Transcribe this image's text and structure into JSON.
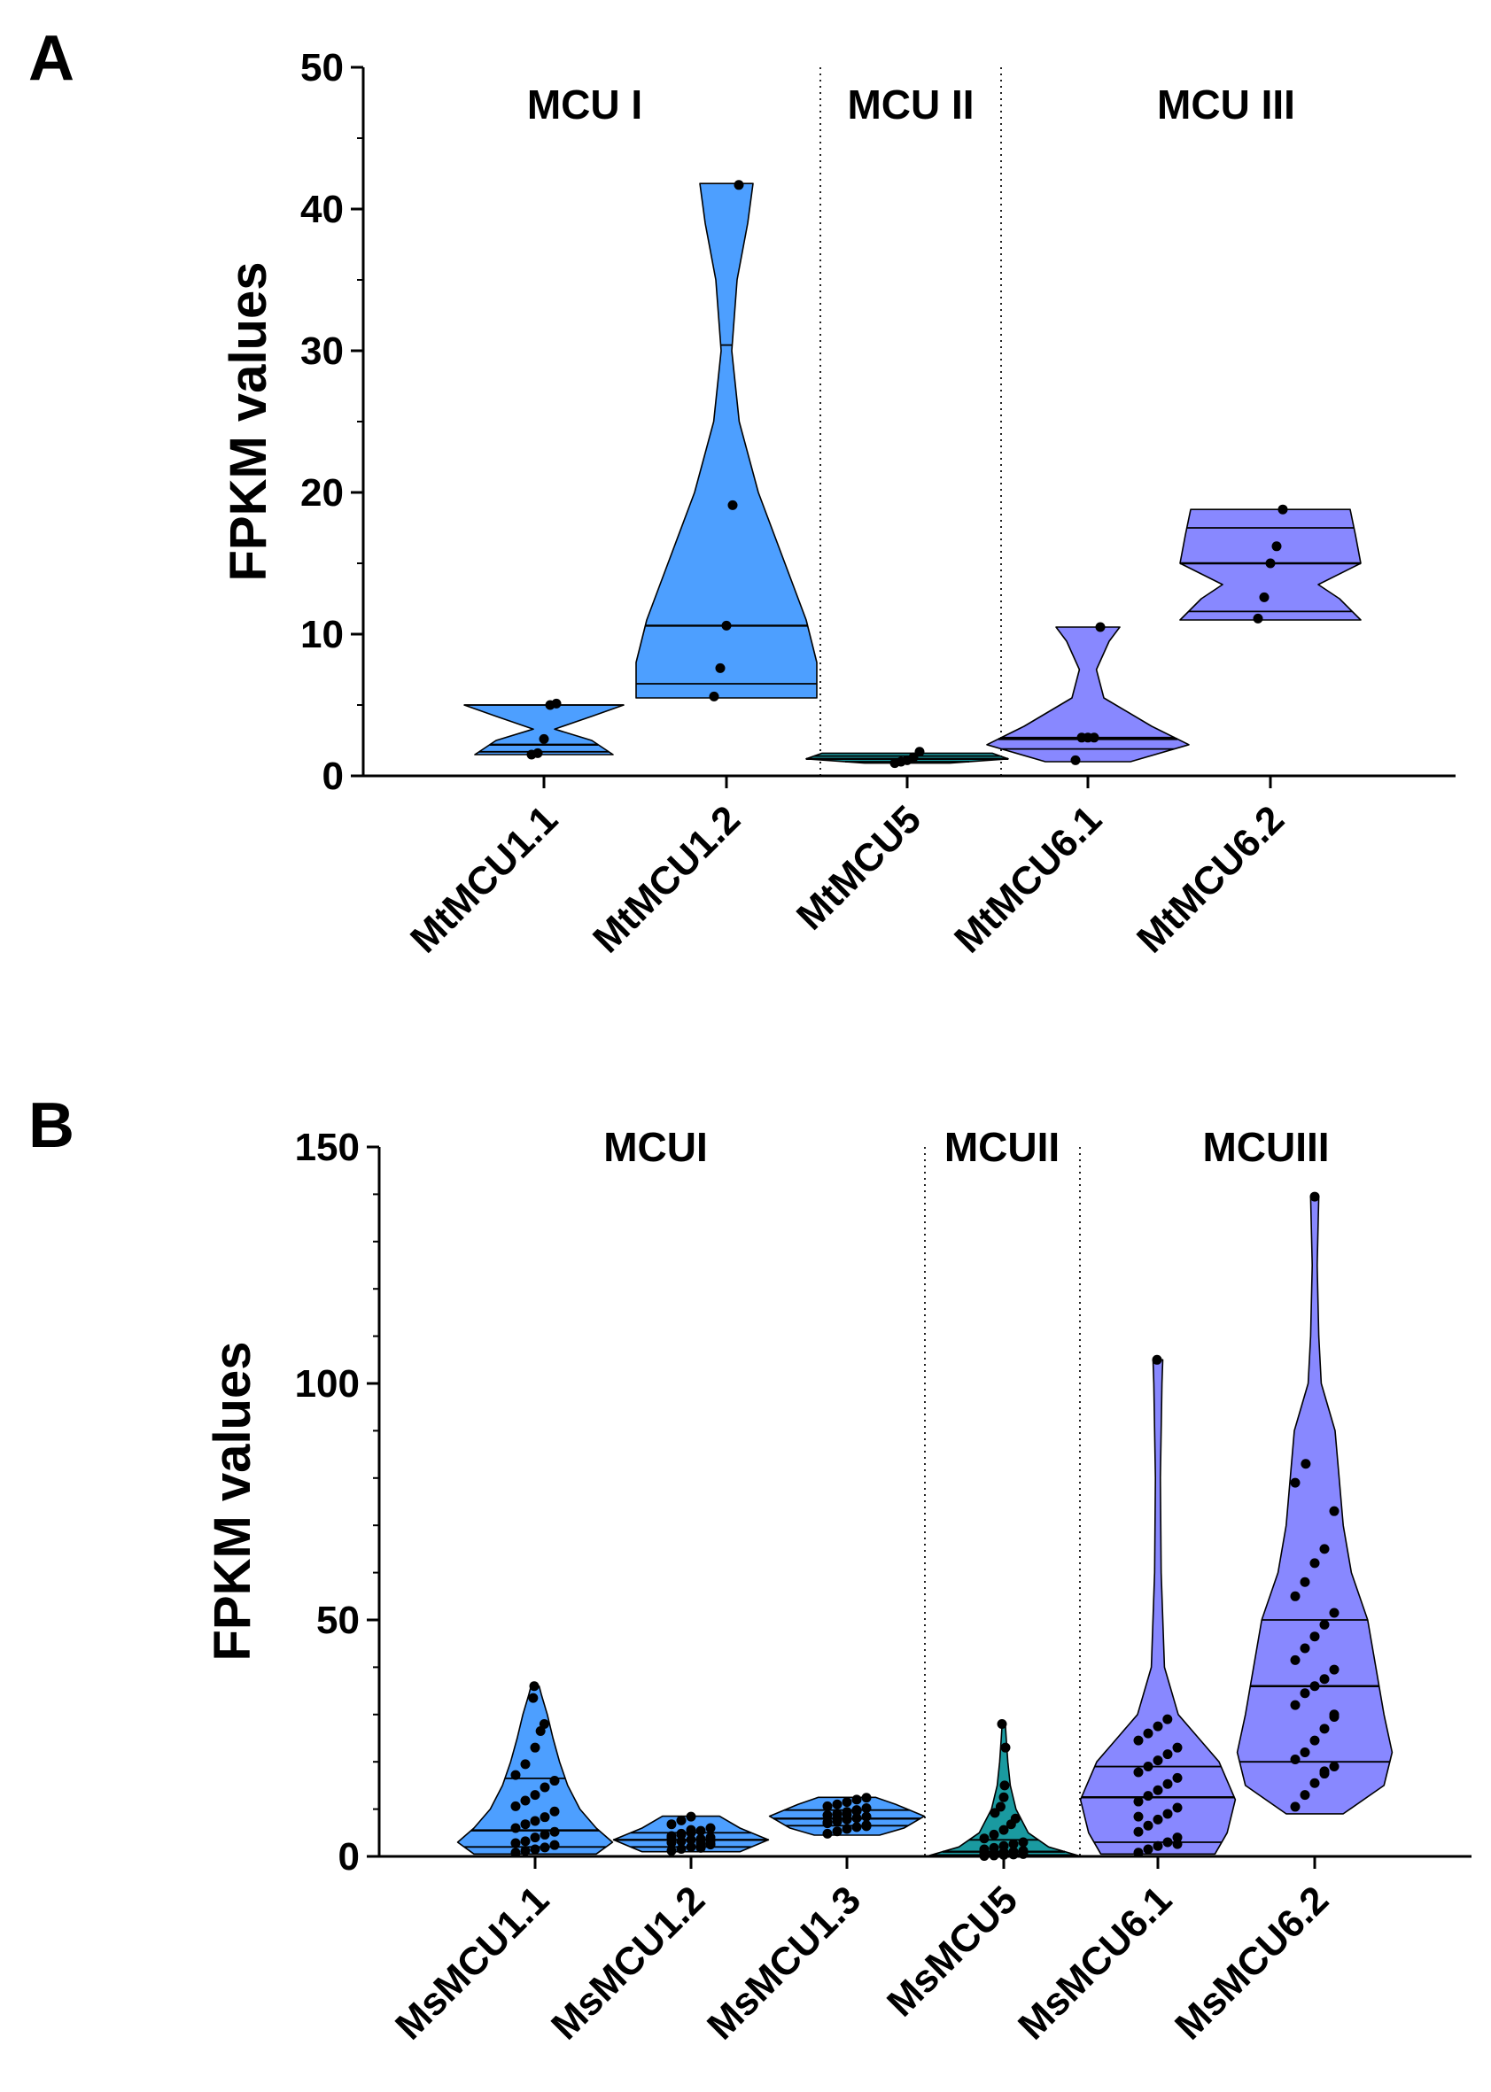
{
  "panels": {
    "A": {
      "letter": "A"
    },
    "B": {
      "letter": "B"
    }
  },
  "colors": {
    "group1": "#4d9fff",
    "group2": "#1a9aa0",
    "group3": "#8888ff",
    "axis": "#000000",
    "point": "#000000"
  },
  "chart_data": [
    {
      "type": "violin",
      "panel": "A",
      "ylabel": "FPKM values",
      "ylim": [
        0,
        50
      ],
      "yticks": [
        0,
        10,
        20,
        30,
        40,
        50
      ],
      "ytick_labels": [
        "0",
        "10",
        "20",
        "30",
        "40",
        "50"
      ],
      "group_labels": [
        "MCU I",
        "MCU II",
        "MCU III"
      ],
      "categories": [
        "MtMCU1.1",
        "MtMCU1.2",
        "MtMCU5",
        "MtMCU6.1",
        "MtMCU6.2"
      ],
      "series": [
        {
          "name": "MtMCU1.1",
          "group": 1,
          "min": 1.5,
          "max": 5.0,
          "quartiles": [
            1.7,
            2.2,
            5.0
          ],
          "profile": [
            [
              1.5,
              0.65
            ],
            [
              2.5,
              0.45
            ],
            [
              3.3,
              0.1
            ],
            [
              4.2,
              0.45
            ],
            [
              5.0,
              0.75
            ]
          ],
          "points": [
            1.5,
            1.6,
            2.6,
            5.0,
            5.1
          ]
        },
        {
          "name": "MtMCU1.2",
          "group": 1,
          "min": 5.5,
          "max": 41.8,
          "quartiles": [
            6.5,
            10.6,
            30.4
          ],
          "profile": [
            [
              5.5,
              0.85
            ],
            [
              8,
              0.85
            ],
            [
              11,
              0.75
            ],
            [
              15,
              0.55
            ],
            [
              20,
              0.3
            ],
            [
              25,
              0.12
            ],
            [
              30,
              0.05
            ],
            [
              35,
              0.1
            ],
            [
              39,
              0.2
            ],
            [
              41.8,
              0.25
            ]
          ],
          "points": [
            5.6,
            7.6,
            10.6,
            19.1,
            41.7
          ]
        },
        {
          "name": "MtMCU5",
          "group": 2,
          "min": 0.9,
          "max": 1.6,
          "quartiles": [
            1.0,
            1.2,
            1.4
          ],
          "profile": [
            [
              0.9,
              0.4
            ],
            [
              1.2,
              0.95
            ],
            [
              1.6,
              0.8
            ]
          ],
          "points": [
            0.9,
            1.0,
            1.1,
            1.3,
            1.7
          ]
        },
        {
          "name": "MtMCU6.1",
          "group": 3,
          "min": 1.0,
          "max": 10.5,
          "quartiles": [
            1.9,
            2.6,
            2.7
          ],
          "profile": [
            [
              1.0,
              0.4
            ],
            [
              2.2,
              0.95
            ],
            [
              3.5,
              0.6
            ],
            [
              5.5,
              0.15
            ],
            [
              7.5,
              0.08
            ],
            [
              9.5,
              0.2
            ],
            [
              10.5,
              0.3
            ]
          ],
          "points": [
            1.1,
            2.7,
            2.7,
            2.7,
            10.5
          ]
        },
        {
          "name": "MtMCU6.2",
          "group": 3,
          "min": 11.0,
          "max": 18.8,
          "quartiles": [
            11.6,
            15.0,
            17.5
          ],
          "profile": [
            [
              11.0,
              0.85
            ],
            [
              12.5,
              0.65
            ],
            [
              13.5,
              0.45
            ],
            [
              15,
              0.85
            ],
            [
              17,
              0.8
            ],
            [
              18.8,
              0.75
            ]
          ],
          "points": [
            11.1,
            12.6,
            15.0,
            16.2,
            18.8
          ]
        }
      ]
    },
    {
      "type": "violin",
      "panel": "B",
      "ylabel": "FPKM values",
      "ylim": [
        0,
        150
      ],
      "yticks": [
        0,
        50,
        100,
        150
      ],
      "ytick_labels": [
        "0",
        "50",
        "100",
        "150"
      ],
      "group_labels": [
        "MCUI",
        "MCUII",
        "MCUIII"
      ],
      "categories": [
        "MsMCU1.1",
        "MsMCU1.2",
        "MsMCU1.3",
        "MsMCU5",
        "MsMCU6.1",
        "MsMCU6.2"
      ],
      "series": [
        {
          "name": "MsMCU1.1",
          "group": 1,
          "min": 0.5,
          "max": 36.0,
          "quartiles": [
            2.0,
            5.5,
            16.5
          ],
          "profile": [
            [
              0.5,
              0.75
            ],
            [
              3,
              0.95
            ],
            [
              6,
              0.75
            ],
            [
              10,
              0.55
            ],
            [
              15,
              0.4
            ],
            [
              20,
              0.3
            ],
            [
              25,
              0.22
            ],
            [
              30,
              0.15
            ],
            [
              34,
              0.08
            ],
            [
              36,
              0.05
            ]
          ],
          "points": [
            0.8,
            1.2,
            1.5,
            1.9,
            2.4,
            2.8,
            3.2,
            4.0,
            4.6,
            5.2,
            6.0,
            6.8,
            7.5,
            8.3,
            9.5,
            10.6,
            11.8,
            13.0,
            14.6,
            16.0,
            17.2,
            19.5,
            23.0,
            26.5,
            28.0,
            33.5,
            36.0
          ]
        },
        {
          "name": "MsMCU1.2",
          "group": 1,
          "min": 1.0,
          "max": 8.5,
          "quartiles": [
            2.0,
            3.5,
            5.0
          ],
          "profile": [
            [
              1.0,
              0.6
            ],
            [
              3.5,
              0.95
            ],
            [
              6,
              0.6
            ],
            [
              8.5,
              0.35
            ]
          ],
          "points": [
            1.2,
            1.6,
            2.0,
            2.3,
            2.6,
            2.9,
            3.2,
            3.5,
            3.7,
            4.0,
            4.3,
            4.6,
            5.0,
            5.4,
            6.0,
            6.8,
            7.6,
            8.4,
            2.8,
            3.3,
            3.9,
            4.8,
            5.6,
            1.8,
            2.5
          ]
        },
        {
          "name": "MsMCU1.3",
          "group": 1,
          "min": 4.5,
          "max": 12.5,
          "quartiles": [
            6.5,
            8.0,
            9.8
          ],
          "profile": [
            [
              4.5,
              0.4
            ],
            [
              6,
              0.7
            ],
            [
              8.5,
              0.95
            ],
            [
              11,
              0.6
            ],
            [
              12.5,
              0.35
            ]
          ],
          "points": [
            4.8,
            5.3,
            5.8,
            6.2,
            6.6,
            7.0,
            7.4,
            7.8,
            8.1,
            8.4,
            8.7,
            9.0,
            9.4,
            9.8,
            10.2,
            10.6,
            11.0,
            11.5,
            12.0,
            12.4,
            7.2,
            8.0,
            8.8,
            9.6,
            6.4
          ]
        },
        {
          "name": "MsMCU5",
          "group": 2,
          "min": 0.0,
          "max": 28.0,
          "quartiles": [
            0.3,
            1.0,
            3.5
          ],
          "profile": [
            [
              0,
              0.95
            ],
            [
              2,
              0.55
            ],
            [
              5,
              0.3
            ],
            [
              10,
              0.15
            ],
            [
              15,
              0.08
            ],
            [
              20,
              0.05
            ],
            [
              25,
              0.03
            ],
            [
              28,
              0.02
            ]
          ],
          "points": [
            0.1,
            0.2,
            0.3,
            0.4,
            0.5,
            0.6,
            0.7,
            0.8,
            1.0,
            1.2,
            1.5,
            1.8,
            2.2,
            2.6,
            3.0,
            3.8,
            4.6,
            5.6,
            6.8,
            8.0,
            9.2,
            10.5,
            12.5,
            15.0,
            23.0,
            28.0,
            0.35,
            0.9
          ]
        },
        {
          "name": "MsMCU6.1",
          "group": 3,
          "min": 0.5,
          "max": 105.0,
          "quartiles": [
            3.0,
            12.5,
            19.0
          ],
          "profile": [
            [
              0.5,
              0.7
            ],
            [
              5,
              0.85
            ],
            [
              12,
              0.95
            ],
            [
              20,
              0.75
            ],
            [
              25,
              0.5
            ],
            [
              30,
              0.25
            ],
            [
              40,
              0.08
            ],
            [
              60,
              0.04
            ],
            [
              80,
              0.03
            ],
            [
              100,
              0.05
            ],
            [
              105,
              0.06
            ]
          ],
          "points": [
            0.8,
            1.5,
            2.2,
            3.0,
            4.0,
            5.2,
            6.5,
            7.8,
            9.0,
            10.3,
            11.6,
            12.8,
            14.0,
            15.3,
            16.6,
            17.8,
            19.0,
            20.3,
            21.6,
            23.0,
            24.5,
            26.0,
            27.5,
            29.0,
            2.6,
            8.4,
            105.0
          ]
        },
        {
          "name": "MsMCU6.2",
          "group": 3,
          "min": 9.0,
          "max": 139.5,
          "quartiles": [
            20.0,
            36.0,
            50.0
          ],
          "profile": [
            [
              9,
              0.35
            ],
            [
              15,
              0.85
            ],
            [
              22,
              0.95
            ],
            [
              30,
              0.85
            ],
            [
              40,
              0.75
            ],
            [
              50,
              0.65
            ],
            [
              60,
              0.45
            ],
            [
              70,
              0.35
            ],
            [
              80,
              0.3
            ],
            [
              90,
              0.25
            ],
            [
              100,
              0.08
            ],
            [
              110,
              0.05
            ],
            [
              125,
              0.03
            ],
            [
              139.5,
              0.05
            ]
          ],
          "points": [
            10.5,
            13.0,
            15.5,
            17.5,
            19.0,
            20.5,
            22.0,
            24.5,
            27.0,
            29.5,
            32.0,
            34.5,
            36.0,
            37.5,
            39.5,
            41.5,
            44.0,
            46.5,
            49.0,
            51.5,
            55.0,
            58.0,
            62.0,
            65.0,
            73.0,
            79.0,
            83.0,
            139.5,
            18.0,
            30.0
          ]
        }
      ]
    }
  ]
}
